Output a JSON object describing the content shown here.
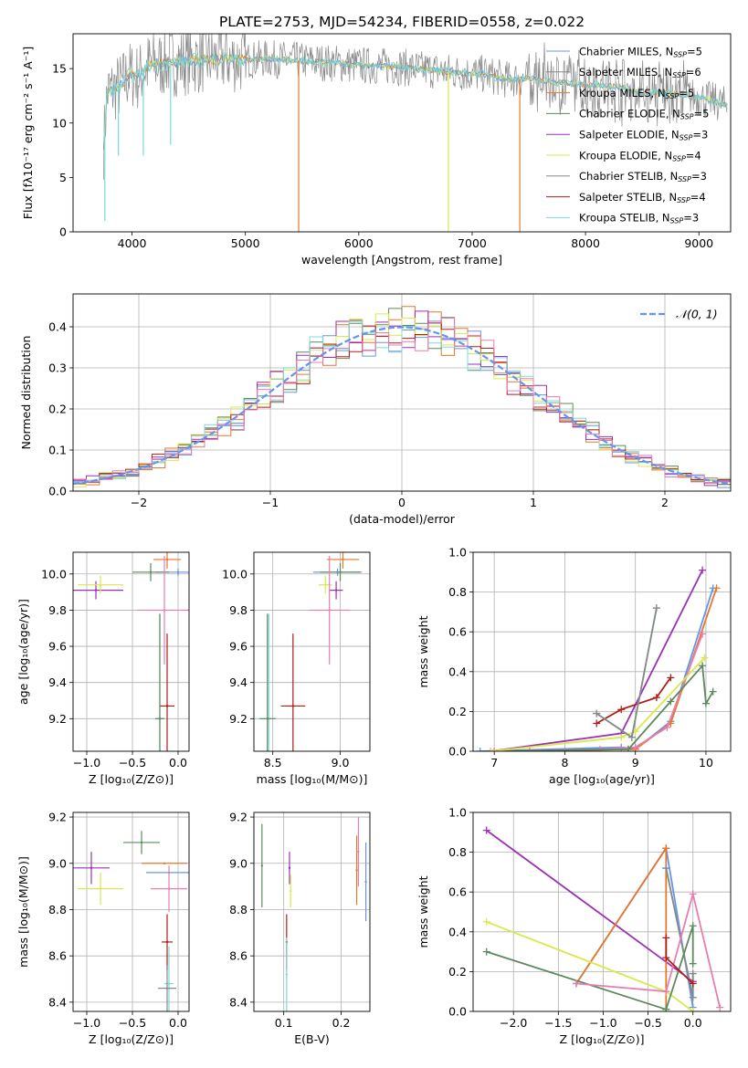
{
  "figure": {
    "title": "PLATE=2753, MJD=54234, FIBERID=0558, z=0.022"
  },
  "colors": {
    "blue": "#6495ED",
    "orange": "#E8772A",
    "green": "#5C8A5C",
    "purple": "#9B30B5",
    "yellow": "#D9E84C",
    "red": "#B31B1B",
    "cyan": "#7FD8D8",
    "pink": "#E87DB0",
    "gray": "#888888"
  },
  "chart_data": [
    {
      "id": "spectrum",
      "type": "line",
      "xlabel": "wavelength [Angstrom, rest frame]",
      "ylabel": "Flux [fλ10⁻¹⁷ erg cm⁻² s⁻¹ A⁻¹]",
      "xlim": [
        3480,
        9280
      ],
      "ylim": [
        0,
        18.2
      ],
      "xticks": [
        4000,
        5000,
        6000,
        7000,
        8000,
        9000
      ],
      "yticks": [
        0,
        5,
        10,
        15
      ],
      "grid": false,
      "legend_placement": "top-right",
      "legend": [
        "Chabrier MILES, N_SSP=5",
        "Salpeter MILES, N_SSP=6",
        "Kroupa MILES, N_SSP=5",
        "Chabrier ELODIE, N_SSP=5",
        "Salpeter ELODIE, N_SSP=3",
        "Kroupa ELODIE, N_SSP=4",
        "Chabrier STELIB, N_SSP=3",
        "Salpeter STELIB, N_SSP=4",
        "Kroupa STELIB, N_SSP=3"
      ],
      "legend_color_keys": [
        "blue",
        "gray",
        "orange",
        "green",
        "purple",
        "yellow",
        "gray",
        "red",
        "cyan"
      ],
      "continuum": [
        [
          3750,
          8
        ],
        [
          3780,
          12.8
        ],
        [
          3900,
          13.4
        ],
        [
          3980,
          14.5
        ],
        [
          4050,
          14.2
        ],
        [
          4150,
          15.3
        ],
        [
          4300,
          15.5
        ],
        [
          4400,
          15.6
        ],
        [
          4600,
          15.8
        ],
        [
          4800,
          15.9
        ],
        [
          5000,
          15.8
        ],
        [
          5200,
          15.9
        ],
        [
          5500,
          15.7
        ],
        [
          5800,
          15.5
        ],
        [
          6000,
          15.3
        ],
        [
          6300,
          15.2
        ],
        [
          6500,
          15
        ],
        [
          6700,
          14.8
        ],
        [
          6900,
          14.6
        ],
        [
          7100,
          14.5
        ],
        [
          7300,
          14
        ],
        [
          7500,
          14.1
        ],
        [
          7700,
          13.8
        ],
        [
          7900,
          13.6
        ],
        [
          8100,
          13.5
        ],
        [
          8300,
          13.3
        ],
        [
          8500,
          12.8
        ],
        [
          8700,
          12.8
        ],
        [
          8900,
          12.5
        ],
        [
          9100,
          12.1
        ],
        [
          9250,
          11.6
        ]
      ],
      "dips": [
        [
          3760,
          1
        ],
        [
          3880,
          7
        ],
        [
          4100,
          7
        ],
        [
          4340,
          8
        ],
        [
          5470,
          0
        ],
        [
          6790,
          0
        ],
        [
          7420,
          0
        ]
      ]
    },
    {
      "id": "residuals",
      "type": "area",
      "xlabel": "(data-model)/error",
      "ylabel": "Normed distribution",
      "xlim": [
        -2.5,
        2.5
      ],
      "ylim": [
        0,
        0.48
      ],
      "xticks": [
        -2,
        -1,
        0,
        1,
        2
      ],
      "yticks": [
        0.0,
        0.1,
        0.2,
        0.3,
        0.4
      ],
      "grid": true,
      "legend_placement": "top-right",
      "legend": [
        "𝒩(0, 1)"
      ],
      "bin_width": 0.1,
      "series_color_keys": [
        "blue",
        "orange",
        "green",
        "purple",
        "yellow",
        "red",
        "cyan",
        "pink"
      ]
    },
    {
      "id": "age_vs_Z",
      "type": "scatter",
      "xlabel": "Z [log₁₀(Z/Z⊙)]",
      "ylabel": "age  [log₁₀(age/yr)]",
      "xlim": [
        -1.15,
        0.12
      ],
      "ylim": [
        9.02,
        10.12
      ],
      "xticks": [
        -1.0,
        -0.5,
        0.0
      ],
      "yticks": [
        9.2,
        9.4,
        9.6,
        9.8,
        10.0
      ],
      "grid": true,
      "points": [
        {
          "c": "blue",
          "x": 0.0,
          "y": 10.01,
          "xerr": 0.25,
          "yerr": 0.02
        },
        {
          "c": "orange",
          "x": -0.12,
          "y": 10.08,
          "xerr": 0.15,
          "yerr": 0.05
        },
        {
          "c": "green",
          "x": -0.3,
          "y": 10.01,
          "xerr": 0.2,
          "yerr": 0.05
        },
        {
          "c": "purple",
          "x": -0.9,
          "y": 9.91,
          "xerr": 0.3,
          "yerr": 0.05
        },
        {
          "c": "yellow",
          "x": -0.85,
          "y": 9.94,
          "xerr": 0.25,
          "yerr": 0.05
        },
        {
          "c": "pink",
          "x": -0.15,
          "y": 9.8,
          "xerr": 0.3,
          "yerr": 0.3
        },
        {
          "c": "red",
          "x": -0.12,
          "y": 9.27,
          "xerr": 0.08,
          "yerr": 0.4
        },
        {
          "c": "cyan",
          "x": -0.2,
          "y": 9.2,
          "xerr": 0.05,
          "yerr": 0.58
        },
        {
          "c": "green",
          "x": -0.2,
          "y": 9.2,
          "xerr": 0.05,
          "yerr": 0.58
        }
      ]
    },
    {
      "id": "age_vs_mass",
      "type": "scatter",
      "xlabel": "mass [log₁₀(M/M⊙)]",
      "ylabel": "",
      "xlim": [
        8.36,
        9.22
      ],
      "ylim": [
        9.02,
        10.12
      ],
      "xticks": [
        8.5,
        9.0
      ],
      "yticks": [
        9.2,
        9.4,
        9.6,
        9.8,
        10.0
      ],
      "grid": true,
      "points": [
        {
          "c": "blue",
          "x": 8.98,
          "y": 10.01,
          "xerr": 0.18,
          "yerr": 0.02
        },
        {
          "c": "orange",
          "x": 9.02,
          "y": 10.08,
          "xerr": 0.12,
          "yerr": 0.05
        },
        {
          "c": "green",
          "x": 9.0,
          "y": 10.01,
          "xerr": 0.15,
          "yerr": 0.05
        },
        {
          "c": "purple",
          "x": 8.97,
          "y": 9.91,
          "xerr": 0.05,
          "yerr": 0.05
        },
        {
          "c": "yellow",
          "x": 8.89,
          "y": 9.94,
          "xerr": 0.05,
          "yerr": 0.05
        },
        {
          "c": "pink",
          "x": 8.92,
          "y": 9.8,
          "xerr": 0.15,
          "yerr": 0.3
        },
        {
          "c": "red",
          "x": 8.65,
          "y": 9.27,
          "xerr": 0.09,
          "yerr": 0.4
        },
        {
          "c": "cyan",
          "x": 8.47,
          "y": 9.2,
          "xerr": 0.06,
          "yerr": 0.58
        },
        {
          "c": "green",
          "x": 8.46,
          "y": 9.2,
          "xerr": 0.06,
          "yerr": 0.58
        }
      ]
    },
    {
      "id": "weight_vs_age",
      "type": "line",
      "xlabel": "age  [log₁₀(age/yr)]",
      "ylabel": "mass weight",
      "xlim": [
        6.7,
        10.35
      ],
      "ylim": [
        0,
        1.0
      ],
      "xticks": [
        7,
        8,
        9,
        10
      ],
      "yticks": [
        0.0,
        0.2,
        0.4,
        0.6,
        0.8,
        1.0
      ],
      "grid": true,
      "series": [
        {
          "c": "blue",
          "x": [
            6.8,
            8.8,
            9.0,
            9.5,
            10.1
          ],
          "y": [
            0.0,
            0.02,
            0.01,
            0.15,
            0.82
          ]
        },
        {
          "c": "orange",
          "x": [
            7.5,
            8.9,
            9.0,
            9.5,
            10.15
          ],
          "y": [
            0.0,
            0.01,
            0.01,
            0.14,
            0.82
          ]
        },
        {
          "c": "pink",
          "x": [
            7.0,
            8.5,
            9.0,
            9.45,
            9.95
          ],
          "y": [
            0.0,
            0.01,
            0.02,
            0.12,
            0.59
          ]
        },
        {
          "c": "green",
          "x": [
            6.95,
            8.9,
            9.5,
            9.95,
            10.0,
            10.1
          ],
          "y": [
            0.0,
            0.01,
            0.25,
            0.43,
            0.24,
            0.3
          ]
        },
        {
          "c": "purple",
          "x": [
            6.95,
            8.8,
            9.95
          ],
          "y": [
            0.0,
            0.09,
            0.91
          ]
        },
        {
          "c": "yellow",
          "x": [
            6.95,
            8.8,
            9.0,
            9.98
          ],
          "y": [
            0.0,
            0.07,
            0.1,
            0.47
          ]
        },
        {
          "c": "red",
          "x": [
            8.45,
            8.8,
            9.3,
            9.5
          ],
          "y": [
            0.14,
            0.21,
            0.27,
            0.37
          ]
        },
        {
          "c": "cyan",
          "x": [
            8.45,
            8.95,
            9.3
          ],
          "y": [
            0.19,
            0.07,
            0.72
          ]
        },
        {
          "c": "gray",
          "x": [
            8.45,
            8.95,
            9.3
          ],
          "y": [
            0.19,
            0.07,
            0.72
          ]
        }
      ]
    },
    {
      "id": "mass_vs_Z",
      "type": "scatter",
      "xlabel": "Z [log₁₀(Z/Z⊙)]",
      "ylabel": "mass [log₁₀(M/M⊙)]",
      "xlim": [
        -1.15,
        0.12
      ],
      "ylim": [
        8.36,
        9.22
      ],
      "xticks": [
        -1.0,
        -0.5,
        0.0
      ],
      "yticks": [
        8.4,
        8.6,
        8.8,
        9.0,
        9.2
      ],
      "grid": true,
      "points": [
        {
          "c": "blue",
          "x": -0.1,
          "y": 8.96,
          "xerr": 0.25,
          "yerr": 0.0
        },
        {
          "c": "orange",
          "x": -0.15,
          "y": 9.0,
          "xerr": 0.25,
          "yerr": 0.0
        },
        {
          "c": "green",
          "x": -0.4,
          "y": 9.09,
          "xerr": 0.2,
          "yerr": 0.05
        },
        {
          "c": "purple",
          "x": -0.95,
          "y": 8.98,
          "xerr": 0.2,
          "yerr": 0.07
        },
        {
          "c": "yellow",
          "x": -0.85,
          "y": 8.89,
          "xerr": 0.25,
          "yerr": 0.07
        },
        {
          "c": "pink",
          "x": -0.1,
          "y": 8.89,
          "xerr": 0.2,
          "yerr": 0.1
        },
        {
          "c": "red",
          "x": -0.12,
          "y": 8.66,
          "xerr": 0.06,
          "yerr": 0.12
        },
        {
          "c": "cyan",
          "x": -0.1,
          "y": 8.48,
          "xerr": 0.05,
          "yerr": 0.16
        },
        {
          "c": "gray",
          "x": -0.12,
          "y": 8.46,
          "xerr": 0.1,
          "yerr": 0.1
        }
      ]
    },
    {
      "id": "mass_vs_ebv",
      "type": "scatter",
      "xlabel": "E(B-V)",
      "ylabel": "",
      "xlim": [
        0.048,
        0.25
      ],
      "ylim": [
        8.36,
        9.22
      ],
      "xticks": [
        0.1,
        0.2
      ],
      "yticks": [
        8.4,
        8.6,
        8.8,
        9.0,
        9.2
      ],
      "grid": true,
      "points": [
        {
          "c": "blue",
          "x": 0.243,
          "y": 8.92,
          "xerr": 0,
          "yerr": 0.17
        },
        {
          "c": "orange",
          "x": 0.227,
          "y": 8.97,
          "xerr": 0,
          "yerr": 0.15
        },
        {
          "c": "pink",
          "x": 0.23,
          "y": 9.05,
          "xerr": 0,
          "yerr": 0.15
        },
        {
          "c": "green",
          "x": 0.062,
          "y": 8.99,
          "xerr": 0,
          "yerr": 0.18
        },
        {
          "c": "purple",
          "x": 0.11,
          "y": 8.98,
          "xerr": 0,
          "yerr": 0.07
        },
        {
          "c": "yellow",
          "x": 0.112,
          "y": 8.88,
          "xerr": 0,
          "yerr": 0.07
        },
        {
          "c": "red",
          "x": 0.105,
          "y": 8.66,
          "xerr": 0,
          "yerr": 0.12
        },
        {
          "c": "cyan",
          "x": 0.105,
          "y": 8.52,
          "xerr": 0,
          "yerr": 0.16
        }
      ]
    },
    {
      "id": "weight_vs_Z",
      "type": "line",
      "xlabel": "Z [log₁₀(Z/Z⊙)]",
      "ylabel": "mass weight",
      "xlim": [
        -2.45,
        0.42
      ],
      "ylim": [
        0,
        1.0
      ],
      "xticks": [
        -2.0,
        -1.5,
        -1.0,
        -0.5,
        0.0
      ],
      "yticks": [
        0.0,
        0.2,
        0.4,
        0.6,
        0.8,
        1.0
      ],
      "grid": true,
      "series": [
        {
          "c": "purple",
          "x": [
            -2.3,
            0.0
          ],
          "y": [
            0.91,
            0.15
          ]
        },
        {
          "c": "blue",
          "x": [
            -1.3,
            -0.3,
            0.0
          ],
          "y": [
            0.14,
            0.82,
            0.02
          ]
        },
        {
          "c": "orange",
          "x": [
            -1.3,
            -0.3,
            -0.3
          ],
          "y": [
            0.14,
            0.82,
            0.01
          ]
        },
        {
          "c": "cyan",
          "x": [
            -0.3,
            0.0,
            0.0
          ],
          "y": [
            0.72,
            0.07,
            0.19
          ]
        },
        {
          "c": "gray",
          "x": [
            -0.3,
            0.0,
            0.0
          ],
          "y": [
            0.72,
            0.07,
            0.19
          ]
        },
        {
          "c": "yellow",
          "x": [
            -2.3,
            -0.3,
            0.0
          ],
          "y": [
            0.45,
            0.1,
            0.0
          ]
        },
        {
          "c": "green",
          "x": [
            -2.3,
            -0.3,
            0.0,
            0.0
          ],
          "y": [
            0.3,
            0.01,
            0.43,
            0.24
          ]
        },
        {
          "c": "pink",
          "x": [
            -1.3,
            -0.3,
            0.0,
            0.3
          ],
          "y": [
            0.14,
            0.1,
            0.59,
            0.02
          ]
        },
        {
          "c": "red",
          "x": [
            -0.3,
            -0.3,
            0.0
          ],
          "y": [
            0.37,
            0.27,
            0.14
          ]
        }
      ]
    }
  ]
}
